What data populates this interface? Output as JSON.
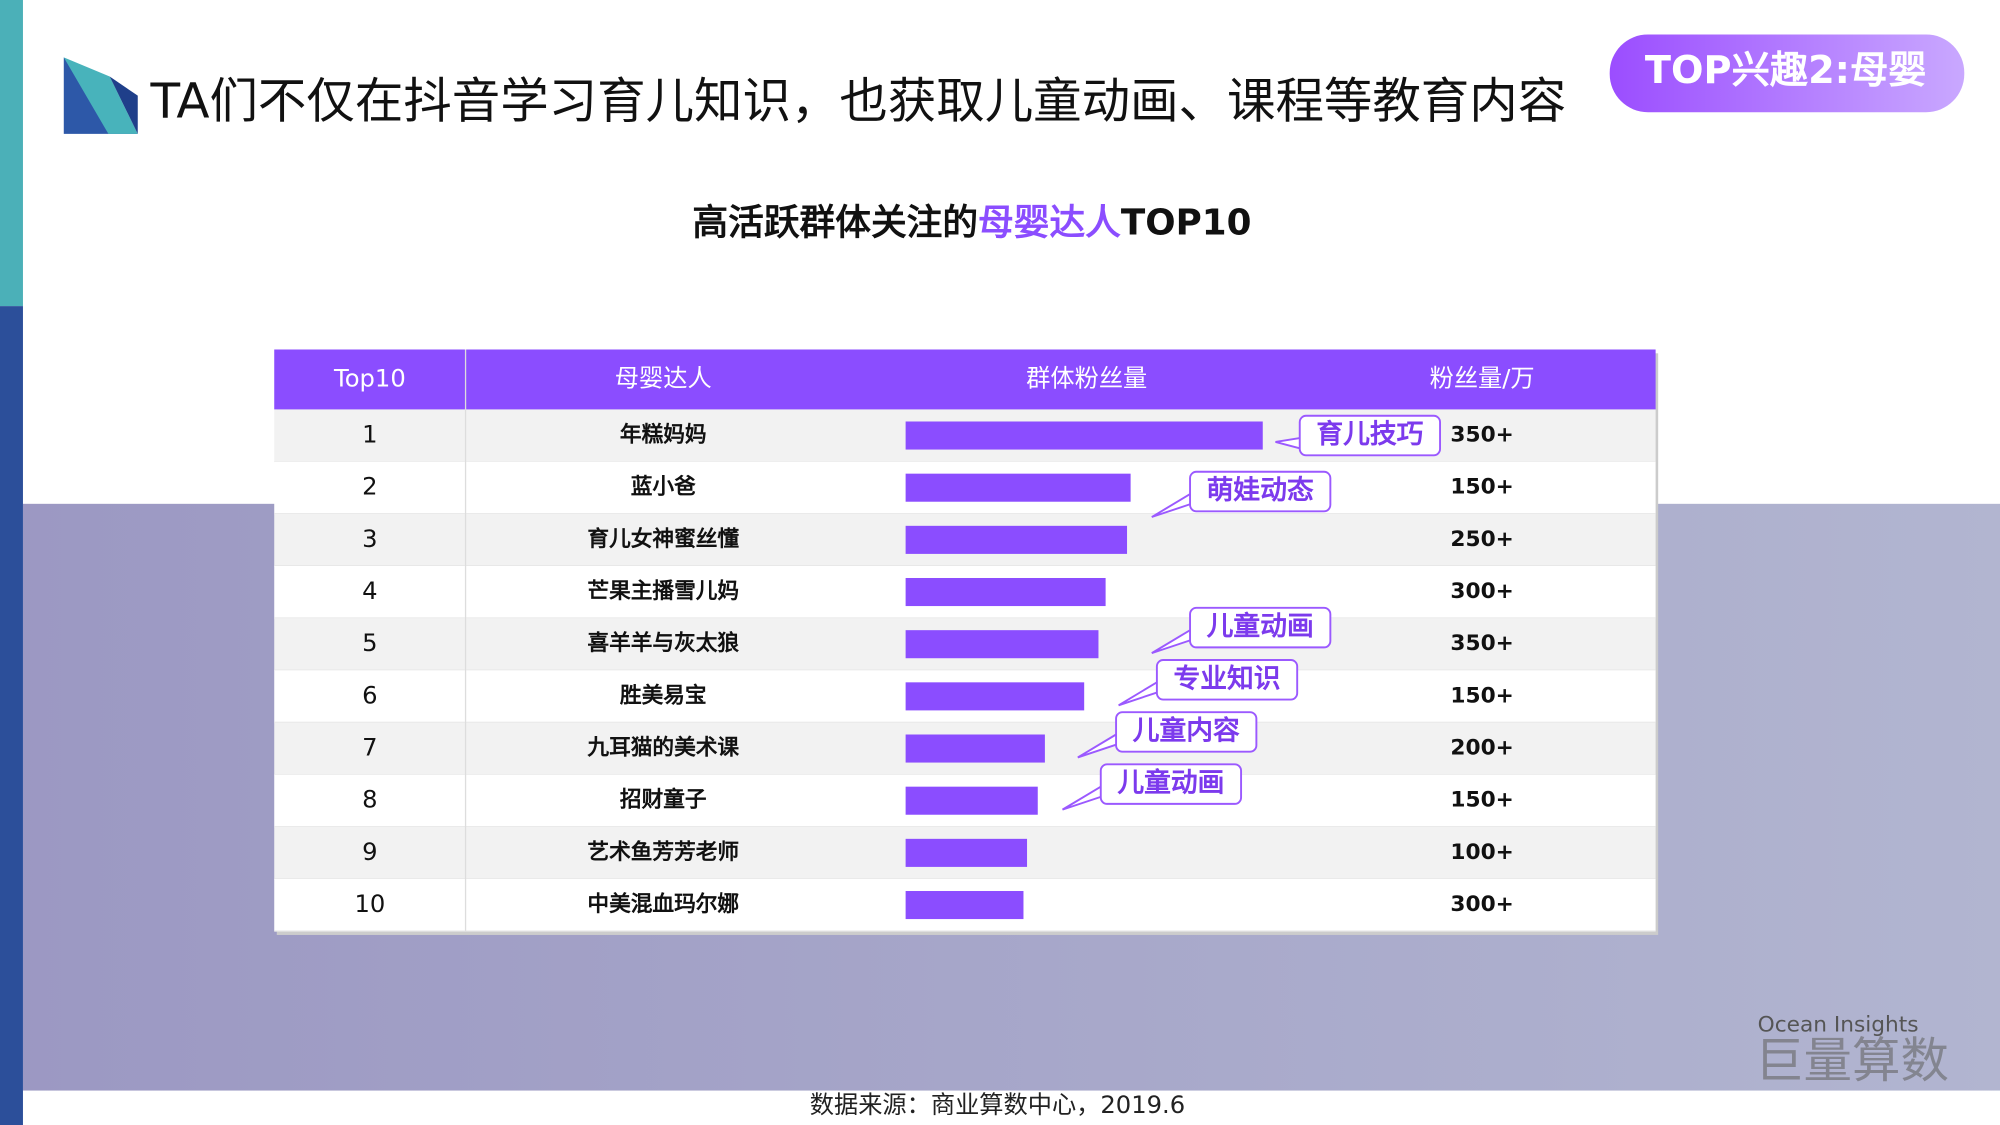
{
  "header": {
    "title": "TA们不仅在抖音学习育儿知识，也获取儿童动画、课程等教育内容",
    "badge": "TOP兴趣2:母婴"
  },
  "chart_data": {
    "type": "table-bar",
    "title_parts": [
      "高活跃群体关注的",
      "母婴达人",
      "TOP10"
    ],
    "columns": [
      "Top10",
      "母婴达人",
      "群体粉丝量",
      "粉丝量/万"
    ],
    "ranks": [
      "1",
      "2",
      "3",
      "4",
      "5",
      "6",
      "7",
      "8",
      "9",
      "10"
    ],
    "categories": [
      "年糕妈妈",
      "蓝小爸",
      "育儿女神蜜丝懂",
      "芒果主播雪儿妈",
      "喜羊羊与灰太狼",
      "胜美易宝",
      "九耳猫的美术课",
      "招财童子",
      "艺术鱼芳芳老师",
      "中美混血玛尔娜"
    ],
    "values": [
      100,
      63,
      62,
      56,
      54,
      50,
      39,
      37,
      34,
      33
    ],
    "xlim": [
      0,
      100
    ],
    "color": "#8b4dff",
    "fans": [
      "350+",
      "150+",
      "250+",
      "300+",
      "350+",
      "150+",
      "200+",
      "150+",
      "100+",
      "300+"
    ],
    "tags": [
      {
        "row": 0,
        "text": "育儿技巧"
      },
      {
        "row": 1,
        "text": "萌娃动态"
      },
      {
        "row": 4,
        "text": "儿童动画"
      },
      {
        "row": 5,
        "text": "专业知识"
      },
      {
        "row": 6,
        "text": "儿童内容"
      },
      {
        "row": 7,
        "text": "儿童动画"
      }
    ]
  },
  "source": "数据来源：商业算数中心，2019.6",
  "watermark": {
    "en": "Ocean Insights",
    "cn": "巨量算数"
  }
}
